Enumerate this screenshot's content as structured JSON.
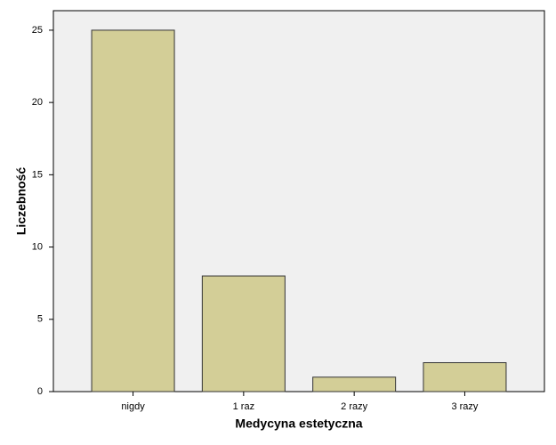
{
  "chart_data": {
    "type": "bar",
    "x_label": "Medycyna estetyczna",
    "y_label": "Liczebność",
    "categories": [
      "nigdy",
      "1 raz",
      "2 razy",
      "3 razy"
    ],
    "values": [
      25,
      8,
      1,
      2
    ],
    "color": "#d3ce97",
    "ylim": [
      0,
      26.35
    ],
    "yticks": [
      0,
      5,
      10,
      15,
      20,
      25
    ],
    "grid": false
  }
}
